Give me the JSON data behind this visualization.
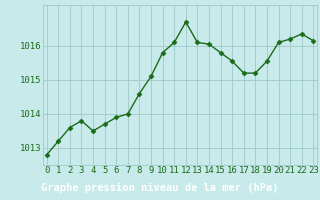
{
  "x": [
    0,
    1,
    2,
    3,
    4,
    5,
    6,
    7,
    8,
    9,
    10,
    11,
    12,
    13,
    14,
    15,
    16,
    17,
    18,
    19,
    20,
    21,
    22,
    23
  ],
  "y": [
    1012.8,
    1013.2,
    1013.6,
    1013.8,
    1013.5,
    1013.7,
    1013.9,
    1014.0,
    1014.6,
    1015.1,
    1015.8,
    1016.1,
    1016.7,
    1016.1,
    1016.05,
    1015.8,
    1015.55,
    1015.2,
    1015.2,
    1015.55,
    1016.1,
    1016.2,
    1016.35,
    1016.15
  ],
  "line_color": "#1a6b1a",
  "marker": "D",
  "marker_size": 2.5,
  "line_width": 1.0,
  "background_color": "#c8eaea",
  "grid_color": "#a0c8c8",
  "footer_bg": "#2a6b2a",
  "footer_text": "Graphe pression niveau de la mer (hPa)",
  "footer_text_color": "#ffffff",
  "footer_fontsize": 7.5,
  "tick_label_color": "#1a6b1a",
  "tick_fontsize": 6.5,
  "ylim": [
    1012.5,
    1017.2
  ],
  "xlim": [
    -0.3,
    23.3
  ],
  "yticks": [
    1013,
    1014,
    1015,
    1016
  ],
  "xticks": [
    0,
    1,
    2,
    3,
    4,
    5,
    6,
    7,
    8,
    9,
    10,
    11,
    12,
    13,
    14,
    15,
    16,
    17,
    18,
    19,
    20,
    21,
    22,
    23
  ]
}
